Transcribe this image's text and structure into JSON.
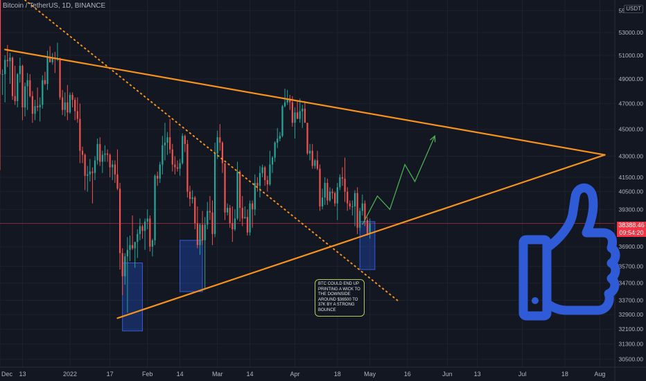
{
  "header": {
    "title": "Bitcoin / TetherUS, 1D, BINANCE",
    "unit_badge": "USDT"
  },
  "price_tags": {
    "current_price": "38388.46",
    "countdown": "09:54:20"
  },
  "annotation": {
    "text": "BTC COULD END UP PRINTING A WICK TO THE DOWNSIDE AROUND $36500 TO 37K BY A STRONG BOUNCE"
  },
  "colors": {
    "background": "#131722",
    "grid": "#1e222d",
    "up": "#26a69a",
    "down": "#ef5350",
    "trendline": "#f7931a",
    "projection": "#4caf50",
    "zone_fill": "#2962ff",
    "thumb_icon": "#2f5bd6",
    "price_line": "#f23645"
  },
  "icons": {
    "thumb": "thumbs-up-icon"
  },
  "chart_data": {
    "type": "candlestick",
    "title": "",
    "xlabel": "",
    "ylabel": "",
    "x_range": [
      "2021-12-04",
      "2022-08-07"
    ],
    "ylim": [
      30100,
      56000
    ],
    "y_scale": "log",
    "grid": true,
    "x_ticks": [
      "Dec",
      "13",
      "2022",
      "17",
      "Feb",
      "14",
      "Mar",
      "14",
      "Apr",
      "18",
      "May",
      "16",
      "Jun",
      "13",
      "Jul",
      "18",
      "Aug"
    ],
    "y_ticks": [
      "55000.00",
      "53000.00",
      "51000.00",
      "49000.00",
      "47000.00",
      "45000.00",
      "43000.00",
      "41500.00",
      "40500.00",
      "39300.00",
      "36900.00",
      "35700.00",
      "34700.00",
      "33700.00",
      "32900.00",
      "32100.00",
      "31300.00",
      "30500.00"
    ],
    "current_price": 38388.46,
    "trendlines": [
      {
        "style": "solid",
        "points": [
          [
            "2021-12-06",
            51500
          ],
          [
            "2022-08-03",
            43100
          ]
        ]
      },
      {
        "style": "solid",
        "points": [
          [
            "2022-01-20",
            32700
          ],
          [
            "2022-08-03",
            43100
          ]
        ]
      },
      {
        "style": "dotted",
        "points": [
          [
            "2021-12-14",
            56000
          ],
          [
            "2022-05-12",
            33700
          ]
        ]
      }
    ],
    "zones": [
      {
        "x": [
          "2022-01-22",
          "2022-01-30"
        ],
        "y": [
          32000,
          35900
        ]
      },
      {
        "x": [
          "2022-02-14",
          "2022-02-23"
        ],
        "y": [
          34200,
          37300
        ]
      },
      {
        "x": [
          "2022-04-27",
          "2022-05-03"
        ],
        "y": [
          35500,
          38500
        ]
      }
    ],
    "projection": [
      [
        "2022-04-28",
        38300
      ],
      [
        "2022-05-04",
        40200
      ],
      [
        "2022-05-09",
        39300
      ],
      [
        "2022-05-15",
        42400
      ],
      [
        "2022-05-19",
        41200
      ],
      [
        "2022-05-27",
        44500
      ]
    ],
    "candles": [
      [
        "2021-12-04",
        57000,
        57500,
        42000,
        49400
      ],
      [
        "2021-12-05",
        49400,
        49800,
        47700,
        49400
      ],
      [
        "2021-12-06",
        49400,
        51000,
        47100,
        50600
      ],
      [
        "2021-12-07",
        50600,
        51900,
        50000,
        50500
      ],
      [
        "2021-12-08",
        50500,
        51200,
        48600,
        50800
      ],
      [
        "2021-12-09",
        50800,
        50900,
        47300,
        47600
      ],
      [
        "2021-12-10",
        47600,
        50100,
        46900,
        47200
      ],
      [
        "2021-12-11",
        47200,
        49500,
        46700,
        49400
      ],
      [
        "2021-12-12",
        49400,
        50800,
        48700,
        50100
      ],
      [
        "2021-12-13",
        50100,
        50200,
        45700,
        46700
      ],
      [
        "2021-12-14",
        46700,
        48700,
        46000,
        48400
      ],
      [
        "2021-12-15",
        48400,
        49500,
        46500,
        48900
      ],
      [
        "2021-12-16",
        48900,
        49400,
        47500,
        47600
      ],
      [
        "2021-12-17",
        47600,
        48000,
        45500,
        46200
      ],
      [
        "2021-12-18",
        46200,
        47300,
        45700,
        46800
      ],
      [
        "2021-12-19",
        46800,
        48300,
        46400,
        46700
      ],
      [
        "2021-12-20",
        46700,
        47500,
        45600,
        46900
      ],
      [
        "2021-12-21",
        46900,
        49300,
        46600,
        48900
      ],
      [
        "2021-12-22",
        48900,
        49600,
        48500,
        48600
      ],
      [
        "2021-12-23",
        48600,
        51400,
        48100,
        50800
      ],
      [
        "2021-12-24",
        50800,
        51800,
        50400,
        50400
      ],
      [
        "2021-12-25",
        50400,
        51200,
        50200,
        50800
      ],
      [
        "2021-12-26",
        50800,
        51300,
        49500,
        50700
      ],
      [
        "2021-12-27",
        50700,
        52100,
        50500,
        50700
      ],
      [
        "2021-12-28",
        50700,
        50800,
        47300,
        47500
      ],
      [
        "2021-12-29",
        47500,
        48100,
        46100,
        46500
      ],
      [
        "2021-12-30",
        46500,
        47900,
        46000,
        47100
      ],
      [
        "2021-12-31",
        47100,
        48500,
        45700,
        46300
      ],
      [
        "2022-01-01",
        46300,
        47900,
        46200,
        47700
      ],
      [
        "2022-01-02",
        47700,
        47900,
        46700,
        47300
      ],
      [
        "2022-01-03",
        47300,
        47500,
        45700,
        46400
      ],
      [
        "2022-01-04",
        46400,
        47500,
        45500,
        45800
      ],
      [
        "2022-01-05",
        45800,
        47000,
        42500,
        43400
      ],
      [
        "2022-01-06",
        43400,
        43700,
        42500,
        43100
      ],
      [
        "2022-01-07",
        43100,
        43200,
        40600,
        41600
      ],
      [
        "2022-01-08",
        41600,
        42300,
        40500,
        41700
      ],
      [
        "2022-01-09",
        41700,
        42800,
        41200,
        41900
      ],
      [
        "2022-01-10",
        41900,
        42200,
        39700,
        41800
      ],
      [
        "2022-01-11",
        41800,
        43000,
        41300,
        42700
      ],
      [
        "2022-01-12",
        42700,
        44300,
        42400,
        43900
      ],
      [
        "2022-01-13",
        43900,
        44400,
        42300,
        42600
      ],
      [
        "2022-01-14",
        42600,
        43400,
        41800,
        43100
      ],
      [
        "2022-01-15",
        43100,
        43800,
        42600,
        43200
      ],
      [
        "2022-01-16",
        43200,
        43500,
        42600,
        43100
      ],
      [
        "2022-01-17",
        43100,
        43200,
        41500,
        42200
      ],
      [
        "2022-01-18",
        42200,
        42700,
        41300,
        42400
      ],
      [
        "2022-01-19",
        42400,
        42700,
        41100,
        41700
      ],
      [
        "2022-01-20",
        41700,
        43500,
        40600,
        40700
      ],
      [
        "2022-01-21",
        40700,
        41100,
        35500,
        36500
      ],
      [
        "2022-01-22",
        36500,
        36800,
        34000,
        35100
      ],
      [
        "2022-01-23",
        35100,
        36500,
        34600,
        36300
      ],
      [
        "2022-01-24",
        36300,
        37500,
        33000,
        36700
      ],
      [
        "2022-01-25",
        36700,
        37600,
        36000,
        37000
      ],
      [
        "2022-01-26",
        37000,
        38900,
        36700,
        36800
      ],
      [
        "2022-01-27",
        36800,
        37200,
        35600,
        37200
      ],
      [
        "2022-01-28",
        37200,
        38000,
        36200,
        37700
      ],
      [
        "2022-01-29",
        37700,
        38700,
        37300,
        38200
      ],
      [
        "2022-01-30",
        38200,
        38300,
        37400,
        37900
      ],
      [
        "2022-01-31",
        37900,
        38700,
        36700,
        38500
      ],
      [
        "2022-02-01",
        38500,
        39300,
        38000,
        38700
      ],
      [
        "2022-02-02",
        38700,
        38900,
        36600,
        36900
      ],
      [
        "2022-02-03",
        36900,
        37400,
        36300,
        37300
      ],
      [
        "2022-02-04",
        37300,
        41700,
        37000,
        41600
      ],
      [
        "2022-02-05",
        41600,
        41900,
        40900,
        41400
      ],
      [
        "2022-02-06",
        41400,
        42600,
        41100,
        42400
      ],
      [
        "2022-02-07",
        42400,
        44500,
        41700,
        43800
      ],
      [
        "2022-02-08",
        43800,
        45500,
        42700,
        44000
      ],
      [
        "2022-02-09",
        44000,
        44800,
        43100,
        44400
      ],
      [
        "2022-02-10",
        44400,
        45800,
        43200,
        43500
      ],
      [
        "2022-02-11",
        43500,
        43900,
        41900,
        42400
      ],
      [
        "2022-02-12",
        42400,
        43000,
        41700,
        42200
      ],
      [
        "2022-02-13",
        42200,
        42700,
        41900,
        42100
      ],
      [
        "2022-02-14",
        42100,
        42800,
        41600,
        42500
      ],
      [
        "2022-02-15",
        42500,
        44700,
        42400,
        44500
      ],
      [
        "2022-02-16",
        44500,
        44600,
        43300,
        43900
      ],
      [
        "2022-02-17",
        43900,
        44200,
        40100,
        40500
      ],
      [
        "2022-02-18",
        40500,
        40900,
        39500,
        40000
      ],
      [
        "2022-02-19",
        40000,
        40600,
        39700,
        40100
      ],
      [
        "2022-02-20",
        40100,
        40200,
        38000,
        38400
      ],
      [
        "2022-02-21",
        38400,
        39500,
        36800,
        37000
      ],
      [
        "2022-02-22",
        37000,
        38400,
        36400,
        38300
      ],
      [
        "2022-02-23",
        38300,
        39200,
        37000,
        37300
      ],
      [
        "2022-02-24",
        37300,
        38800,
        34300,
        38300
      ],
      [
        "2022-02-25",
        38300,
        39800,
        38000,
        39200
      ],
      [
        "2022-02-26",
        39200,
        40200,
        38600,
        39100
      ],
      [
        "2022-02-27",
        39100,
        39900,
        37000,
        37700
      ],
      [
        "2022-02-28",
        37700,
        44000,
        37500,
        43200
      ],
      [
        "2022-03-01",
        43200,
        44900,
        42800,
        44400
      ],
      [
        "2022-03-02",
        44400,
        45400,
        43400,
        44000
      ],
      [
        "2022-03-03",
        44000,
        44100,
        41800,
        42500
      ],
      [
        "2022-03-04",
        42500,
        42500,
        38600,
        39100
      ],
      [
        "2022-03-05",
        39100,
        39700,
        38900,
        39400
      ],
      [
        "2022-03-06",
        39400,
        39600,
        38100,
        38400
      ],
      [
        "2022-03-07",
        38400,
        39500,
        37200,
        38000
      ],
      [
        "2022-03-08",
        38000,
        39300,
        37900,
        38700
      ],
      [
        "2022-03-09",
        38700,
        42600,
        38600,
        41900
      ],
      [
        "2022-03-10",
        41900,
        42000,
        38500,
        39400
      ],
      [
        "2022-03-11",
        39400,
        40200,
        38200,
        38700
      ],
      [
        "2022-03-12",
        38700,
        39500,
        38700,
        38800
      ],
      [
        "2022-03-13",
        38800,
        39300,
        37600,
        37800
      ],
      [
        "2022-03-14",
        37800,
        39900,
        37600,
        39700
      ],
      [
        "2022-03-15",
        39700,
        39900,
        38100,
        39300
      ],
      [
        "2022-03-16",
        39300,
        41700,
        38900,
        41100
      ],
      [
        "2022-03-17",
        41100,
        41500,
        40500,
        40900
      ],
      [
        "2022-03-18",
        40900,
        42300,
        40100,
        41800
      ],
      [
        "2022-03-19",
        41800,
        42400,
        41500,
        42200
      ],
      [
        "2022-03-20",
        42200,
        42300,
        40900,
        41300
      ],
      [
        "2022-03-21",
        41300,
        41600,
        40500,
        41000
      ],
      [
        "2022-03-22",
        41000,
        43400,
        40900,
        42400
      ],
      [
        "2022-03-23",
        42400,
        43000,
        41800,
        42900
      ],
      [
        "2022-03-24",
        42900,
        44100,
        42600,
        44000
      ],
      [
        "2022-03-25",
        44000,
        45100,
        43600,
        44300
      ],
      [
        "2022-03-26",
        44300,
        44800,
        44100,
        44500
      ],
      [
        "2022-03-27",
        44500,
        46900,
        44400,
        46800
      ],
      [
        "2022-03-28",
        46800,
        48200,
        46700,
        47100
      ],
      [
        "2022-03-29",
        47100,
        48100,
        46900,
        47400
      ],
      [
        "2022-03-30",
        47400,
        47700,
        46500,
        47100
      ],
      [
        "2022-03-31",
        47100,
        47600,
        45200,
        45500
      ],
      [
        "2022-04-01",
        45500,
        46700,
        44300,
        46300
      ],
      [
        "2022-04-02",
        46300,
        47200,
        45900,
        45800
      ],
      [
        "2022-04-03",
        45800,
        47400,
        45500,
        46400
      ],
      [
        "2022-04-04",
        46400,
        46900,
        45100,
        46600
      ],
      [
        "2022-04-05",
        46600,
        47200,
        45500,
        45500
      ],
      [
        "2022-04-06",
        45500,
        45500,
        43100,
        43200
      ],
      [
        "2022-04-07",
        43200,
        43900,
        42700,
        43400
      ],
      [
        "2022-04-08",
        43400,
        43900,
        42100,
        42300
      ],
      [
        "2022-04-09",
        42300,
        42800,
        42100,
        42700
      ],
      [
        "2022-04-10",
        42700,
        43400,
        42000,
        42100
      ],
      [
        "2022-04-11",
        42100,
        42400,
        39200,
        39500
      ],
      [
        "2022-04-12",
        39500,
        40700,
        39300,
        40100
      ],
      [
        "2022-04-13",
        40100,
        41500,
        39600,
        41100
      ],
      [
        "2022-04-14",
        41100,
        41400,
        39600,
        39900
      ],
      [
        "2022-04-15",
        39900,
        40800,
        39800,
        40500
      ],
      [
        "2022-04-16",
        40500,
        40700,
        40000,
        40400
      ],
      [
        "2022-04-17",
        40400,
        40500,
        39500,
        39700
      ],
      [
        "2022-04-18",
        39700,
        41100,
        38600,
        40800
      ],
      [
        "2022-04-19",
        40800,
        41700,
        40600,
        41500
      ],
      [
        "2022-04-20",
        41500,
        42200,
        40900,
        41400
      ],
      [
        "2022-04-21",
        41400,
        42900,
        39800,
        40500
      ],
      [
        "2022-04-22",
        40500,
        40800,
        39200,
        39700
      ],
      [
        "2022-04-23",
        39700,
        39900,
        39300,
        39500
      ],
      [
        "2022-04-24",
        39500,
        39900,
        38900,
        39500
      ],
      [
        "2022-04-25",
        39500,
        40600,
        38200,
        40400
      ],
      [
        "2022-04-26",
        40400,
        40800,
        37700,
        38100
      ],
      [
        "2022-04-27",
        38100,
        39400,
        37900,
        39200
      ],
      [
        "2022-04-28",
        39200,
        40300,
        38900,
        39700
      ],
      [
        "2022-04-29",
        39700,
        39900,
        38200,
        38600
      ],
      [
        "2022-04-30",
        38600,
        38800,
        37600,
        37700
      ],
      [
        "2022-05-01",
        37700,
        38700,
        37400,
        38400
      ]
    ]
  }
}
